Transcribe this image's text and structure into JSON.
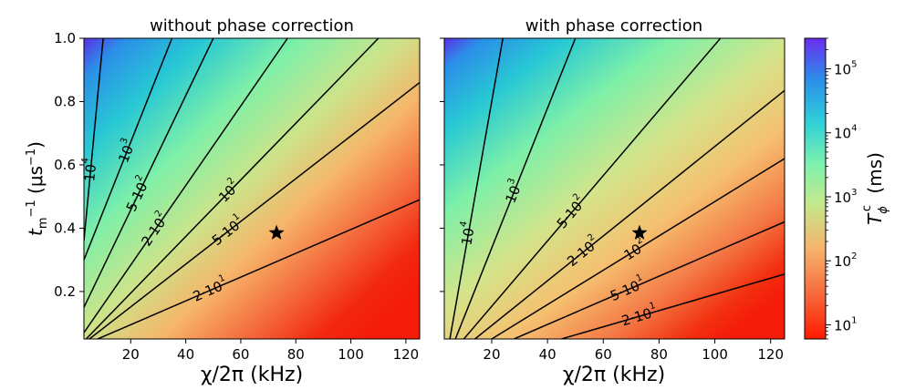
{
  "chart_data": [
    {
      "type": "heatmap",
      "title": "without phase correction",
      "xlabel": "χ/2π  (kHz)",
      "ylabel": "t_m^-1 (μs^-1)",
      "xlim": [
        3,
        125
      ],
      "ylim": [
        0.05,
        1.0
      ],
      "x_ticks": [
        "20",
        "40",
        "60",
        "80",
        "100",
        "120"
      ],
      "y_ticks": [
        "0.2",
        "0.4",
        "0.6",
        "0.8",
        "1.0"
      ],
      "contours": [
        {
          "label_base": "2·10",
          "label_exp": "1",
          "points": [
            [
              8,
              0.05
            ],
            [
              125,
              0.49
            ]
          ]
        },
        {
          "label_base": "5·10",
          "label_exp": "1",
          "points": [
            [
              5,
              0.05
            ],
            [
              125,
              0.86
            ]
          ]
        },
        {
          "label_base": "10",
          "label_exp": "2",
          "points": [
            [
              3.8,
              0.05
            ],
            [
              110,
              1.0
            ]
          ]
        },
        {
          "label_base": "2·10",
          "label_exp": "2",
          "points": [
            [
              3,
              0.07
            ],
            [
              77,
              1.0
            ]
          ]
        },
        {
          "label_base": "5·10",
          "label_exp": "2",
          "points": [
            [
              3,
              0.15
            ],
            [
              50,
              1.0
            ]
          ]
        },
        {
          "label_base": "10",
          "label_exp": "3",
          "points": [
            [
              3,
              0.3
            ],
            [
              35,
              1.0
            ]
          ]
        },
        {
          "label_base": "10",
          "label_exp": "4",
          "points": [
            [
              3,
              0.36
            ],
            [
              10,
              1.0
            ]
          ]
        }
      ],
      "marker": {
        "symbol": "star",
        "x": 73,
        "y": 0.385
      }
    },
    {
      "type": "heatmap",
      "title": "with phase correction",
      "xlabel": "χ/2π   (kHz)",
      "ylabel": "",
      "xlim": [
        3,
        125
      ],
      "ylim": [
        0.05,
        1.0
      ],
      "x_ticks": [
        "20",
        "40",
        "60",
        "80",
        "100",
        "120"
      ],
      "y_ticks": [
        "0.2",
        "0.4",
        "0.6",
        "0.8",
        "1.0"
      ],
      "contours": [
        {
          "label_base": "2·10",
          "label_exp": "1",
          "points": [
            [
              45,
              0.05
            ],
            [
              125,
              0.255
            ]
          ]
        },
        {
          "label_base": "5·10",
          "label_exp": "1",
          "points": [
            [
              28,
              0.05
            ],
            [
              125,
              0.42
            ]
          ]
        },
        {
          "label_base": "10",
          "label_exp": "2",
          "points": [
            [
              20,
              0.05
            ],
            [
              125,
              0.62
            ]
          ]
        },
        {
          "label_base": "2·10",
          "label_exp": "2",
          "points": [
            [
              14,
              0.05
            ],
            [
              125,
              0.835
            ]
          ]
        },
        {
          "label_base": "5·10",
          "label_exp": "2",
          "points": [
            [
              10,
              0.05
            ],
            [
              102,
              1.0
            ]
          ]
        },
        {
          "label_base": "10",
          "label_exp": "3",
          "points": [
            [
              7,
              0.05
            ],
            [
              50,
              1.0
            ]
          ]
        },
        {
          "label_base": "10",
          "label_exp": "4",
          "points": [
            [
              5,
              0.05
            ],
            [
              24,
              1.0
            ]
          ]
        }
      ],
      "marker": {
        "symbol": "star",
        "x": 73,
        "y": 0.385
      }
    }
  ],
  "colorbar": {
    "label_main": "T",
    "label_sub": "ϕ",
    "label_sup": "c",
    "label_unit": "(ms)",
    "scale": "log",
    "range": [
      6,
      300000
    ],
    "ticks": [
      {
        "base": "10",
        "exp": "1"
      },
      {
        "base": "10",
        "exp": "2"
      },
      {
        "base": "10",
        "exp": "3"
      },
      {
        "base": "10",
        "exp": "4"
      },
      {
        "base": "10",
        "exp": "5"
      }
    ]
  }
}
